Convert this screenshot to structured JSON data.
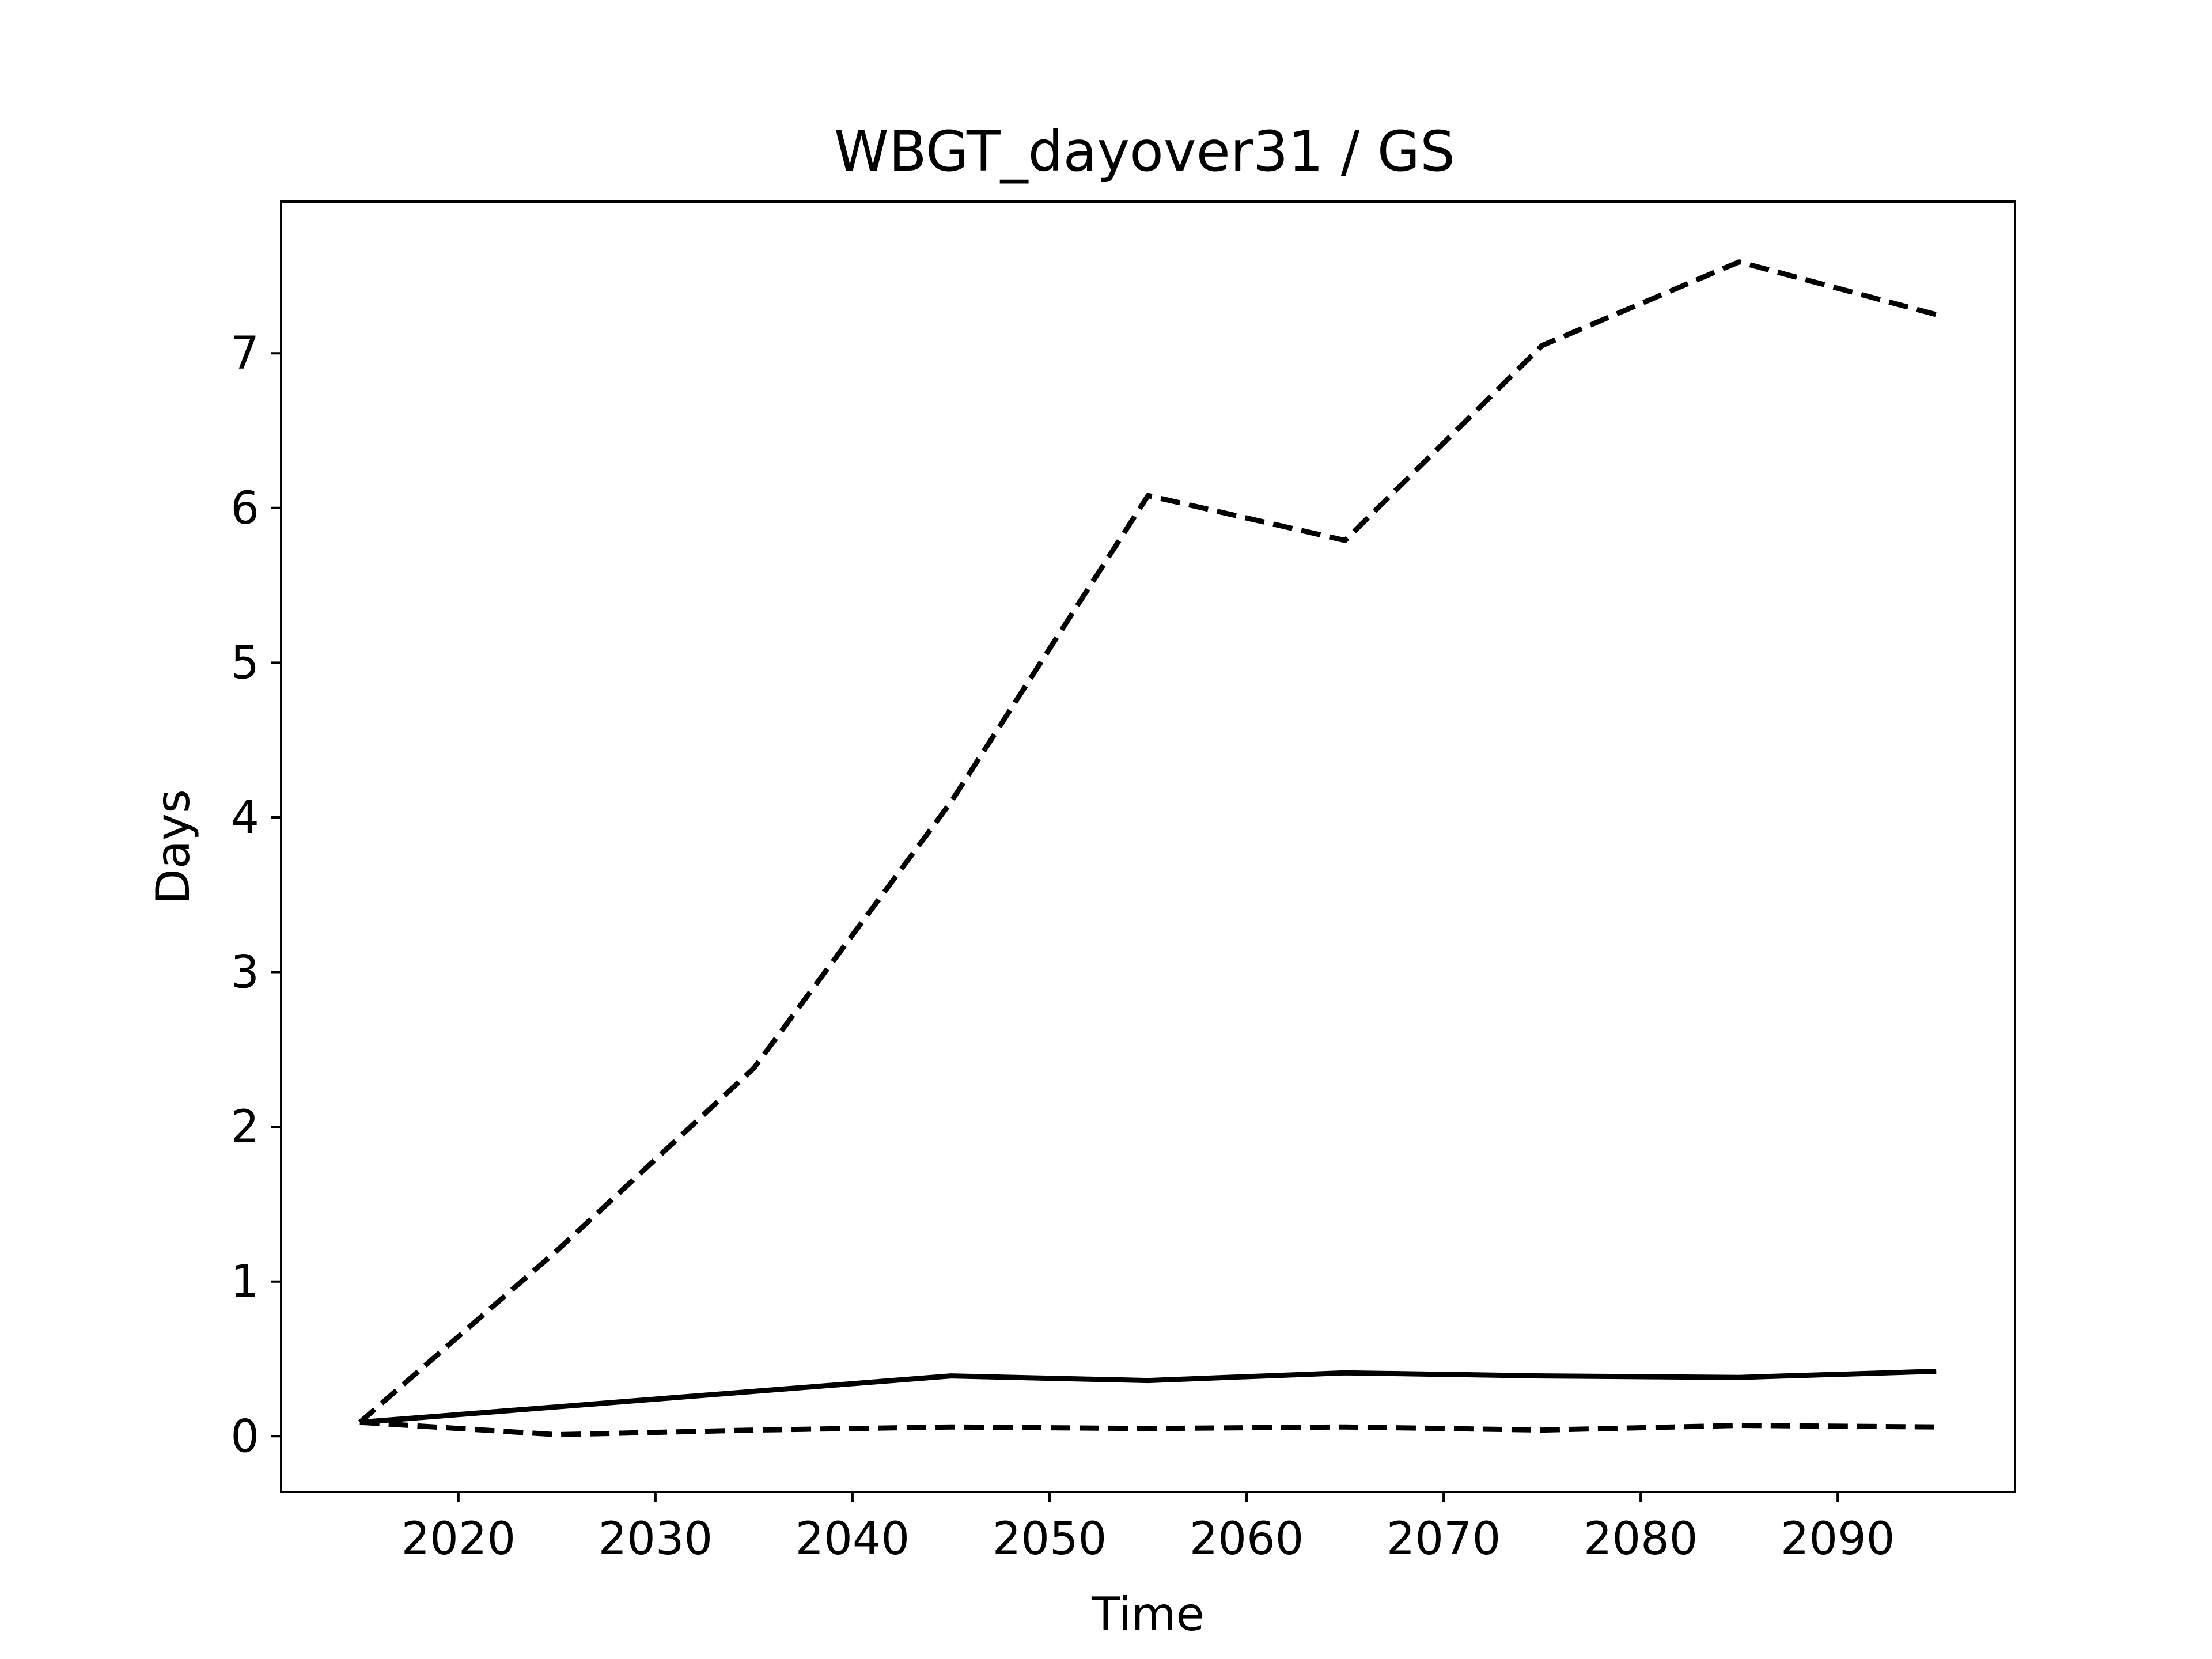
{
  "chart_data": {
    "type": "line",
    "title": "WBGT_dayover31 / GS",
    "xlabel": "Time",
    "ylabel": "Days",
    "xlim": [
      2011,
      2099
    ],
    "ylim": [
      -0.36,
      7.98
    ],
    "xticks": [
      2020,
      2030,
      2040,
      2050,
      2060,
      2070,
      2080,
      2090
    ],
    "yticks": [
      0,
      1,
      2,
      3,
      4,
      5,
      6,
      7
    ],
    "x": [
      2015,
      2025,
      2035,
      2045,
      2055,
      2065,
      2075,
      2085,
      2095
    ],
    "grid": false,
    "legend": "none",
    "series": [
      {
        "style": "dashed",
        "color": "#000000",
        "values": [
          0.09,
          1.2,
          2.38,
          4.1,
          6.08,
          5.79,
          7.05,
          7.59,
          7.25
        ]
      },
      {
        "style": "solid",
        "color": "#000000",
        "values": [
          0.09,
          0.19,
          0.29,
          0.39,
          0.36,
          0.41,
          0.39,
          0.38,
          0.42
        ]
      },
      {
        "style": "dashed",
        "color": "#000000",
        "values": [
          0.09,
          0.01,
          0.04,
          0.06,
          0.05,
          0.06,
          0.04,
          0.07,
          0.06
        ]
      }
    ]
  }
}
